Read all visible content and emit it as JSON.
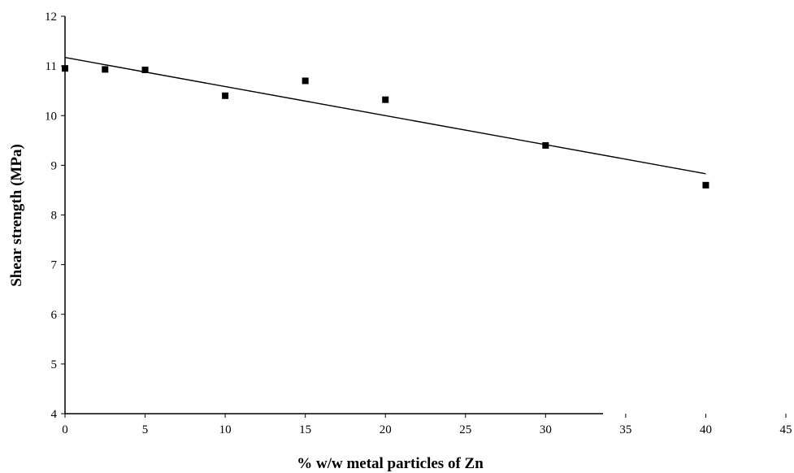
{
  "chart_data": {
    "type": "scatter",
    "title": "",
    "xlabel": "% w/w metal particles of Zn",
    "ylabel": "Shear strength (MPa)",
    "xlim": [
      0,
      45
    ],
    "ylim": [
      4,
      12
    ],
    "x_ticks": [
      "0",
      "5",
      "10",
      "15",
      "20",
      "25",
      "30",
      "35",
      "40",
      "45"
    ],
    "y_ticks": [
      "4",
      "5",
      "6",
      "7",
      "8",
      "9",
      "10",
      "11",
      "12"
    ],
    "grid": false,
    "legend": "none",
    "series": [
      {
        "x": [
          0,
          2.5,
          5,
          10,
          15,
          20,
          30,
          40
        ],
        "y": [
          10.95,
          10.93,
          10.92,
          10.4,
          10.7,
          10.32,
          9.4,
          8.6
        ],
        "marker": "square",
        "color": "#000000"
      }
    ],
    "trendline": {
      "type": "linear",
      "x": [
        0,
        40
      ],
      "y": [
        11.17,
        8.83
      ],
      "color": "#000000"
    }
  }
}
